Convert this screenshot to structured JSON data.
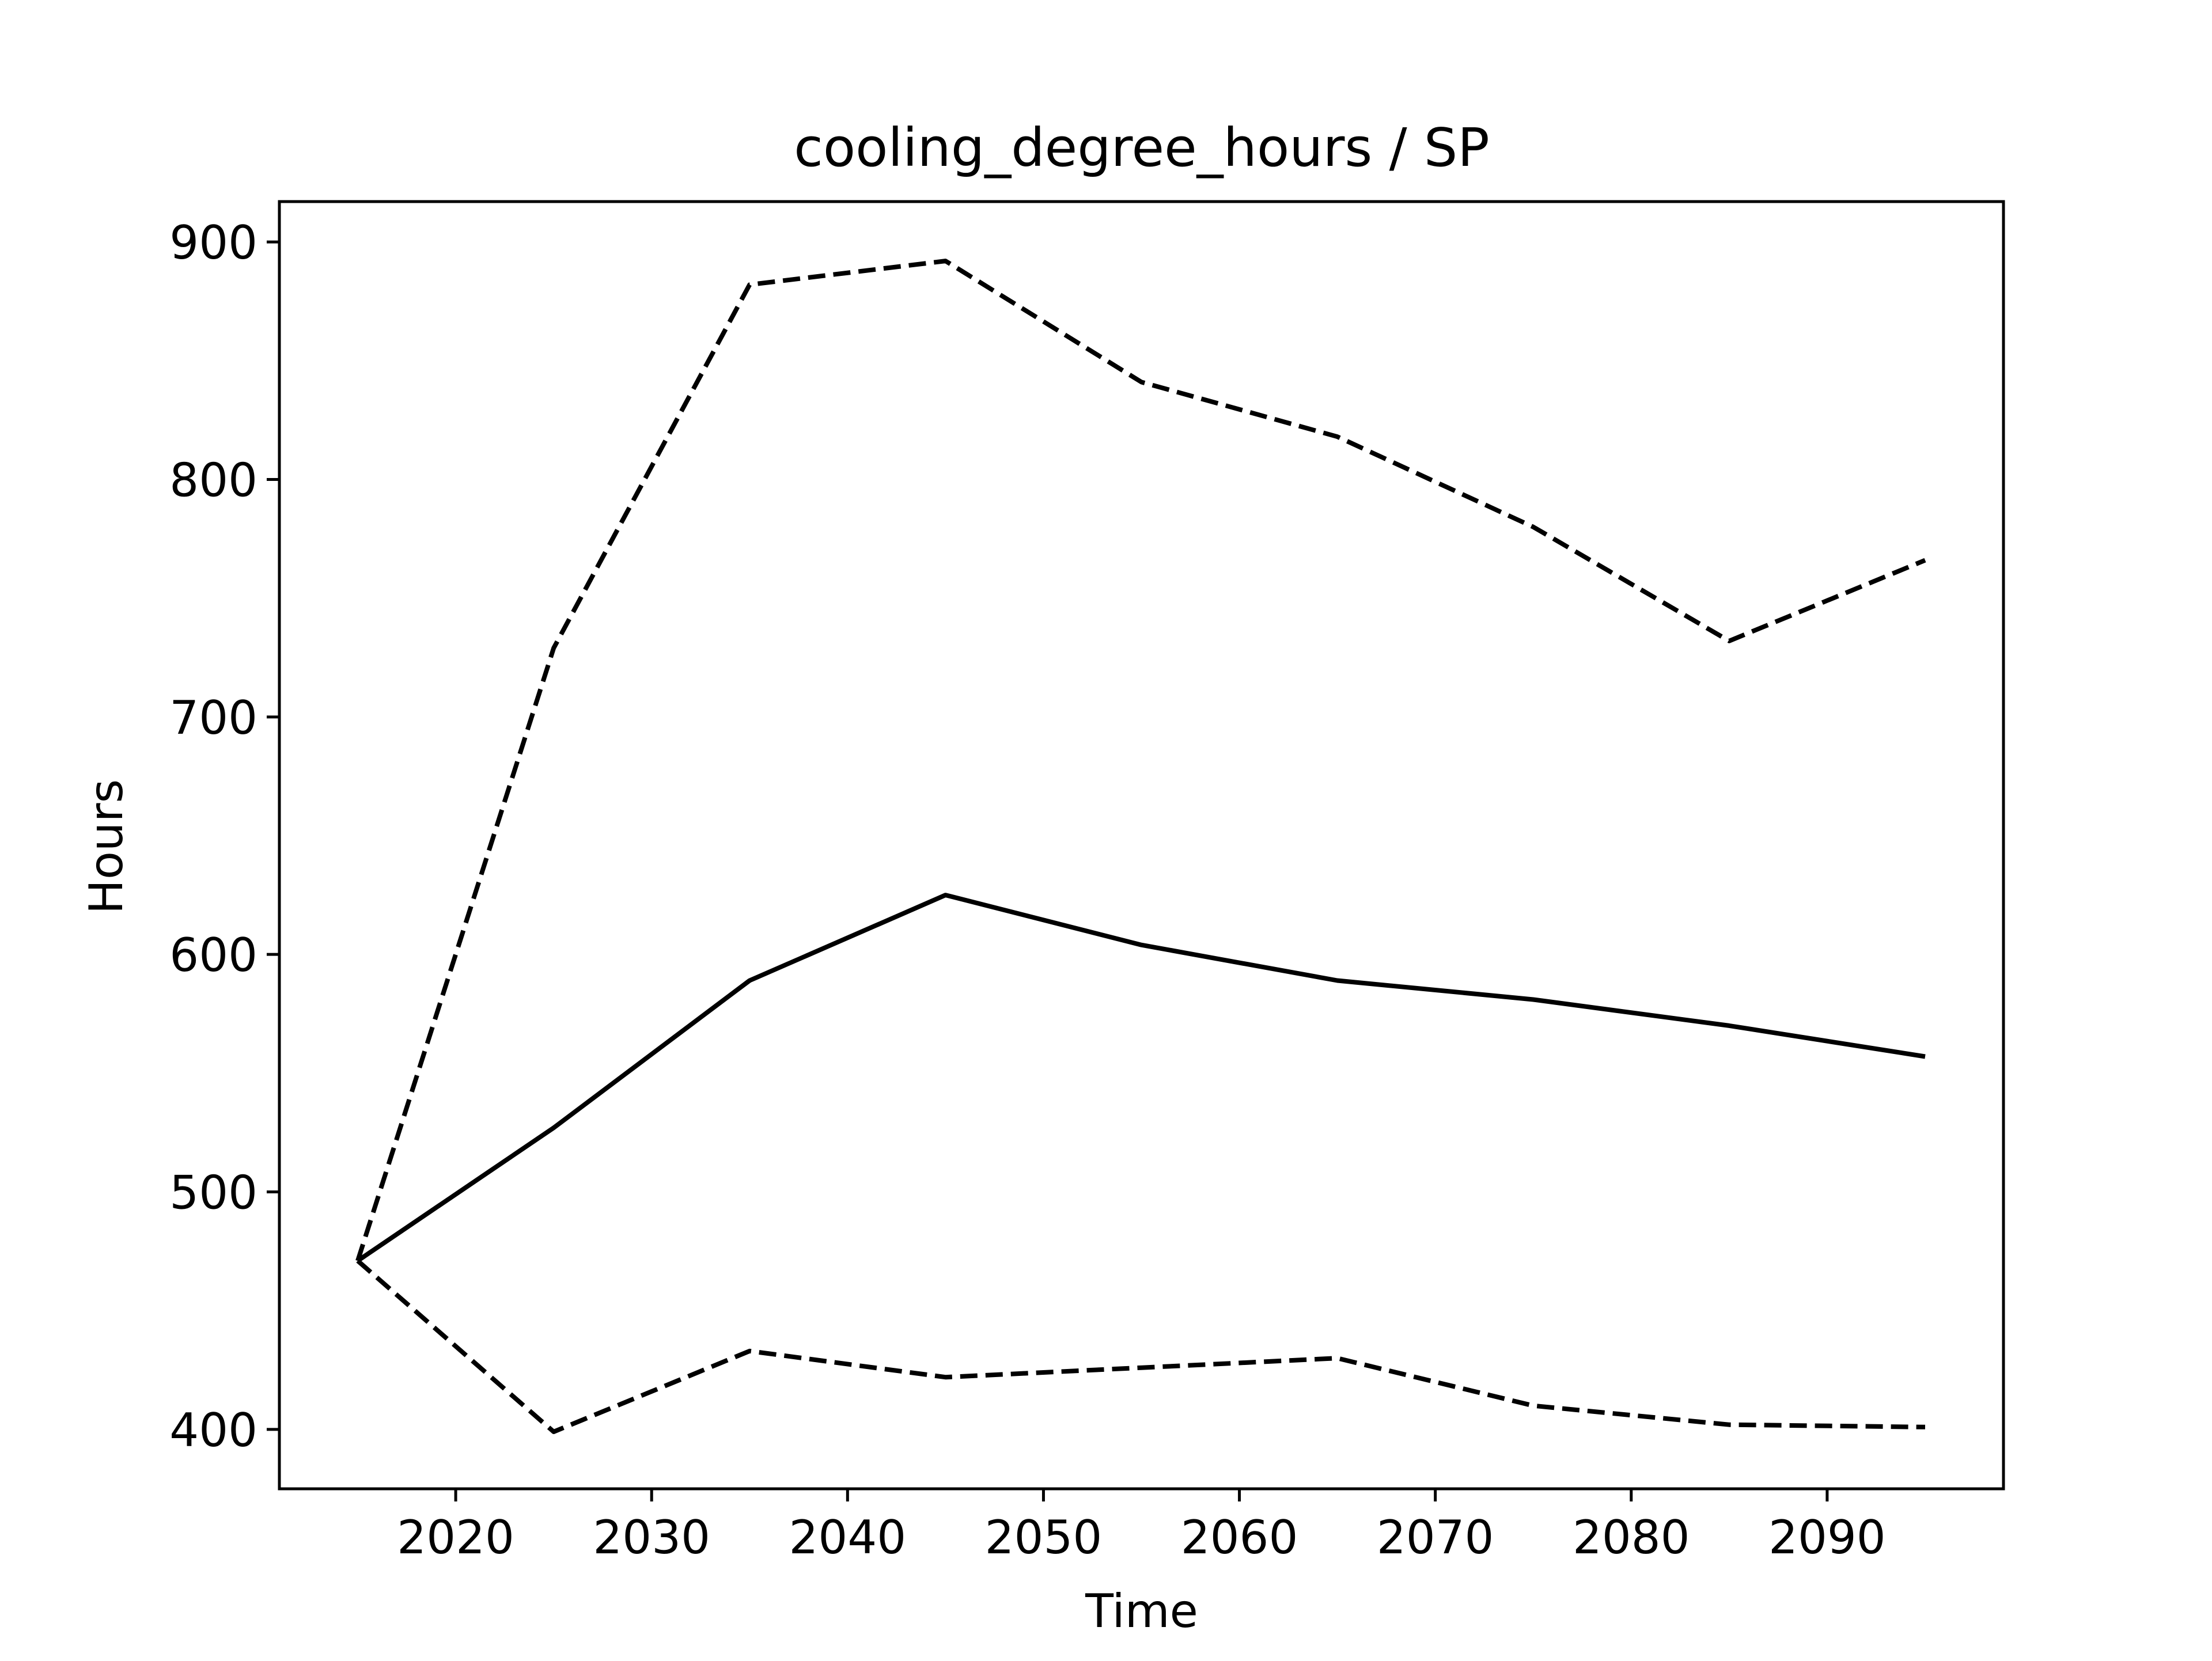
{
  "chart_data": {
    "type": "line",
    "title": "cooling_degree_hours / SP",
    "xlabel": "Time",
    "ylabel": "Hours",
    "xlim": [
      2011,
      2099
    ],
    "ylim": [
      375,
      917
    ],
    "xticks": [
      2020,
      2030,
      2040,
      2050,
      2060,
      2070,
      2080,
      2090
    ],
    "yticks": [
      400,
      500,
      600,
      700,
      800,
      900
    ],
    "x": [
      2015,
      2025,
      2035,
      2045,
      2055,
      2065,
      2075,
      2085,
      2095
    ],
    "series": [
      {
        "key": "mean",
        "style": "solid",
        "color": "#000000",
        "values": [
          471,
          527,
          589,
          625,
          604,
          589,
          581,
          570,
          557
        ]
      },
      {
        "key": "upper",
        "style": "dashed",
        "color": "#000000",
        "values": [
          471,
          729,
          882,
          892,
          841,
          818,
          780,
          732,
          766
        ]
      },
      {
        "key": "lower",
        "style": "dashed",
        "color": "#000000",
        "values": [
          471,
          399,
          433,
          422,
          426,
          430,
          410,
          402,
          401
        ]
      }
    ],
    "grid": false,
    "legend": "none"
  }
}
